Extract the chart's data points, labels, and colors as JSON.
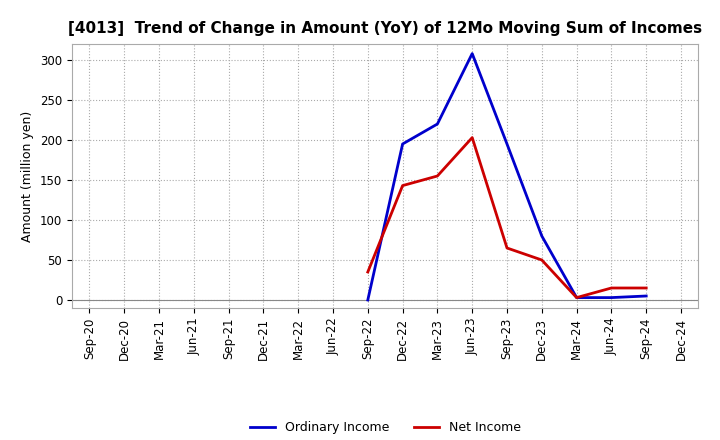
{
  "title": "[4013]  Trend of Change in Amount (YoY) of 12Mo Moving Sum of Incomes",
  "ylabel": "Amount (million yen)",
  "x_labels": [
    "Sep-20",
    "Dec-20",
    "Mar-21",
    "Jun-21",
    "Sep-21",
    "Dec-21",
    "Mar-22",
    "Jun-22",
    "Sep-22",
    "Dec-22",
    "Mar-23",
    "Jun-23",
    "Sep-23",
    "Dec-23",
    "Mar-24",
    "Jun-24",
    "Sep-24",
    "Dec-24"
  ],
  "oi_x_indices": [
    8,
    9,
    10,
    11,
    12,
    13,
    14,
    15,
    16
  ],
  "oi_y": [
    0,
    195,
    220,
    308,
    195,
    80,
    3,
    3,
    5
  ],
  "ni_x_indices": [
    8,
    9,
    10,
    11,
    12,
    13,
    14,
    15,
    16
  ],
  "ni_y": [
    35,
    143,
    155,
    203,
    65,
    50,
    3,
    15,
    15
  ],
  "line_color_ordinary": "#0000cc",
  "line_color_net": "#cc0000",
  "bg_color": "#ffffff",
  "grid_color": "#aaaaaa",
  "ylim": [
    -10,
    320
  ],
  "yticks": [
    0,
    50,
    100,
    150,
    200,
    250,
    300
  ],
  "zero_line_color": "#888888",
  "title_fontsize": 11,
  "ylabel_fontsize": 9,
  "tick_fontsize": 8.5,
  "legend_fontsize": 9,
  "linewidth": 2.0
}
